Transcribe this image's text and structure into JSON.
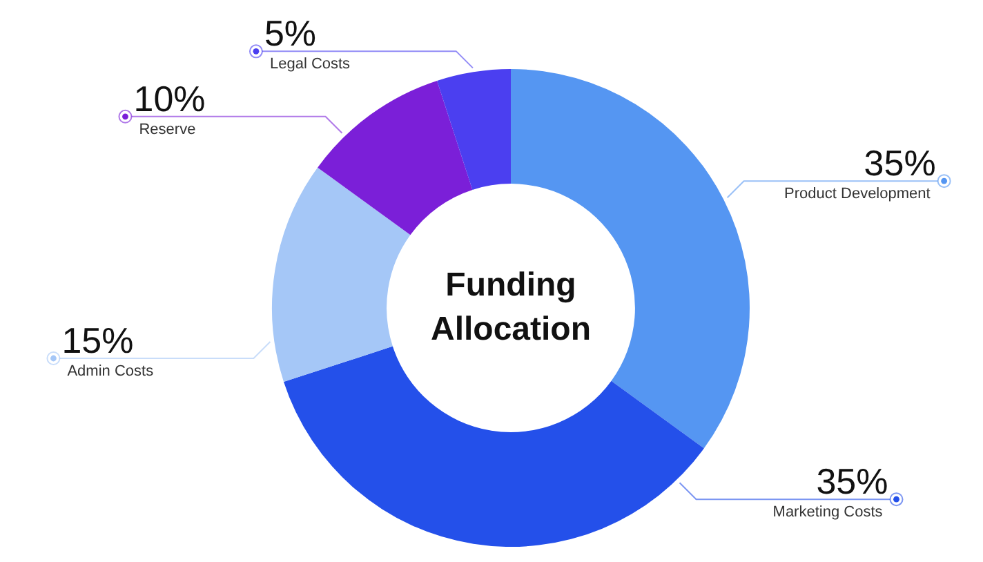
{
  "chart_data": {
    "type": "donut",
    "title": "Funding Allocation",
    "categories": [
      "Product Development",
      "Marketing Costs",
      "Admin Costs",
      "Reserve",
      "Legal Costs"
    ],
    "values": [
      35,
      35,
      15,
      10,
      5
    ],
    "value_labels": [
      "35%",
      "35%",
      "15%",
      "10%",
      "5%"
    ],
    "colors": [
      "#5596f2",
      "#2450ea",
      "#a5c7f7",
      "#7b1fd8",
      "#4b3ff0"
    ],
    "legend": true
  }
}
